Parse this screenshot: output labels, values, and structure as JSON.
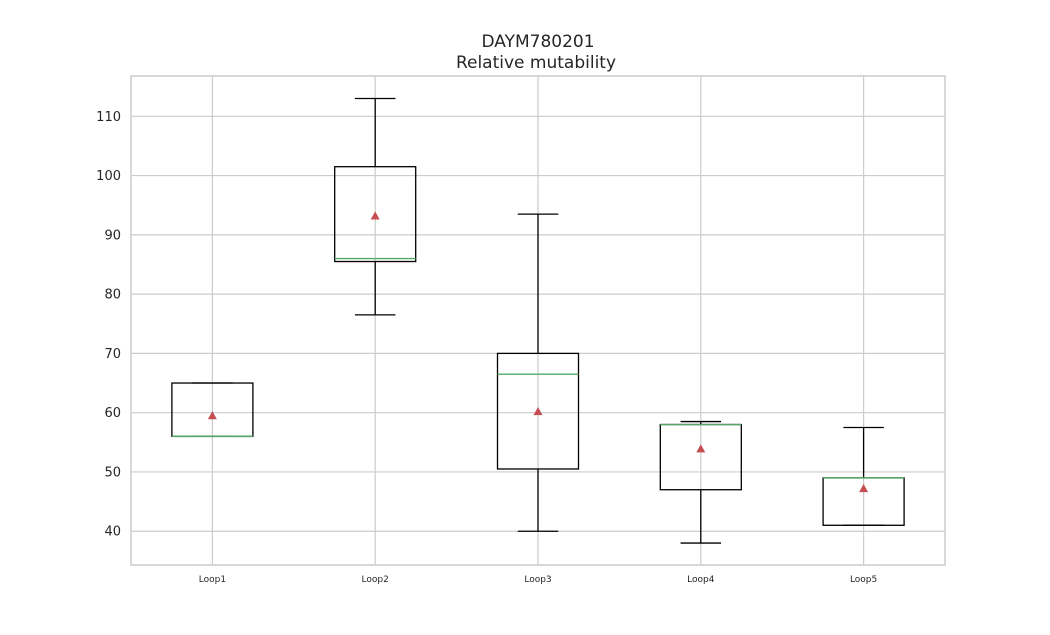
{
  "chart_data": {
    "type": "box",
    "title": "DAYM780201",
    "subtitle": "Relative mutability",
    "xlabel": "",
    "ylabel": "",
    "ylim": [
      34.3,
      116.8
    ],
    "yticks": [
      40,
      50,
      60,
      70,
      80,
      90,
      100,
      110
    ],
    "grid": true,
    "categories": [
      "Loop1",
      "Loop2",
      "Loop3",
      "Loop4",
      "Loop5"
    ],
    "boxes": [
      {
        "whisker_low": 56,
        "q1": 56,
        "median": 56,
        "q3": 65,
        "whisker_high": 65,
        "mean": 59.5
      },
      {
        "whisker_low": 76.5,
        "q1": 85.5,
        "median": 86,
        "q3": 101.5,
        "whisker_high": 113,
        "mean": 93.2
      },
      {
        "whisker_low": 40,
        "q1": 50.5,
        "median": 66.5,
        "q3": 70,
        "whisker_high": 93.5,
        "mean": 60.2
      },
      {
        "whisker_low": 38,
        "q1": 47,
        "median": 58,
        "q3": 58,
        "whisker_high": 58.5,
        "mean": 53.9
      },
      {
        "whisker_low": 41,
        "q1": 41,
        "median": 49,
        "q3": 49,
        "whisker_high": 57.5,
        "mean": 47.2
      }
    ],
    "colors": {
      "box": "#000000",
      "median": "#55a868",
      "mean": "#c44e52",
      "grid": "#cccccc",
      "frame": "#cccccc"
    },
    "mean_marker": "triangle"
  }
}
